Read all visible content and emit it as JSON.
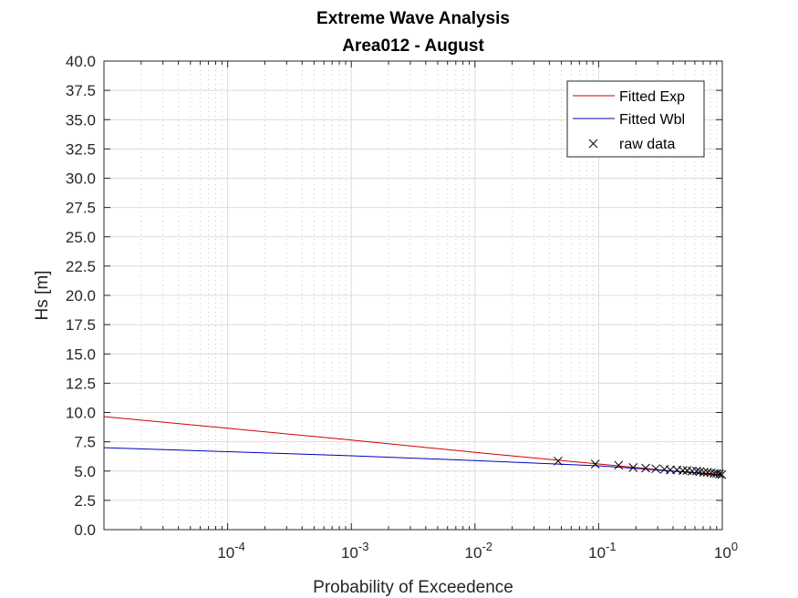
{
  "chart_data": {
    "type": "line",
    "title": "Extreme Wave Analysis",
    "subtitle": "Area012 - August",
    "xlabel": "Probability of Exceedence",
    "ylabel": "Hs [m]",
    "xscale": "log",
    "xlim": [
      1e-05,
      1
    ],
    "ylim": [
      0,
      40
    ],
    "grid": true,
    "x_ticks": [
      {
        "value": 0.0001,
        "base": "10",
        "exp": "-4"
      },
      {
        "value": 0.001,
        "base": "10",
        "exp": "-3"
      },
      {
        "value": 0.01,
        "base": "10",
        "exp": "-2"
      },
      {
        "value": 0.1,
        "base": "10",
        "exp": "-1"
      },
      {
        "value": 1,
        "base": "10",
        "exp": "0"
      }
    ],
    "y_ticks": [
      "0.0",
      "2.5",
      "5.0",
      "7.5",
      "10.0",
      "12.5",
      "15.0",
      "17.5",
      "20.0",
      "22.5",
      "25.0",
      "27.5",
      "30.0",
      "32.5",
      "35.0",
      "37.5",
      "40.0"
    ],
    "legend": {
      "location": "top-right",
      "entries": [
        "Fitted Exp",
        "Fitted Wbl",
        "raw data"
      ]
    },
    "series": [
      {
        "name": "Fitted Exp",
        "color": "#d00000",
        "type": "line",
        "x": [
          1e-05,
          0.0001,
          0.001,
          0.01,
          0.1,
          1
        ],
        "y": [
          9.65,
          8.65,
          7.65,
          6.6,
          5.6,
          4.6
        ]
      },
      {
        "name": "Fitted Wbl",
        "color": "#0000c0",
        "type": "line",
        "x": [
          1e-05,
          0.0001,
          0.001,
          0.01,
          0.1,
          1
        ],
        "y": [
          7.0,
          6.65,
          6.3,
          5.9,
          5.45,
          4.7
        ]
      },
      {
        "name": "raw data",
        "color": "#000000",
        "type": "scatter",
        "x": [
          0.047,
          0.094,
          0.145,
          0.19,
          0.24,
          0.29,
          0.34,
          0.38,
          0.43,
          0.48,
          0.52,
          0.57,
          0.62,
          0.66,
          0.71,
          0.76,
          0.81,
          0.86,
          0.9,
          0.95,
          0.99
        ],
        "y": [
          5.85,
          5.6,
          5.5,
          5.3,
          5.25,
          5.2,
          5.15,
          5.1,
          5.1,
          5.05,
          5.05,
          5.0,
          5.0,
          4.95,
          4.9,
          4.9,
          4.85,
          4.8,
          4.8,
          4.75,
          4.7
        ]
      }
    ]
  }
}
